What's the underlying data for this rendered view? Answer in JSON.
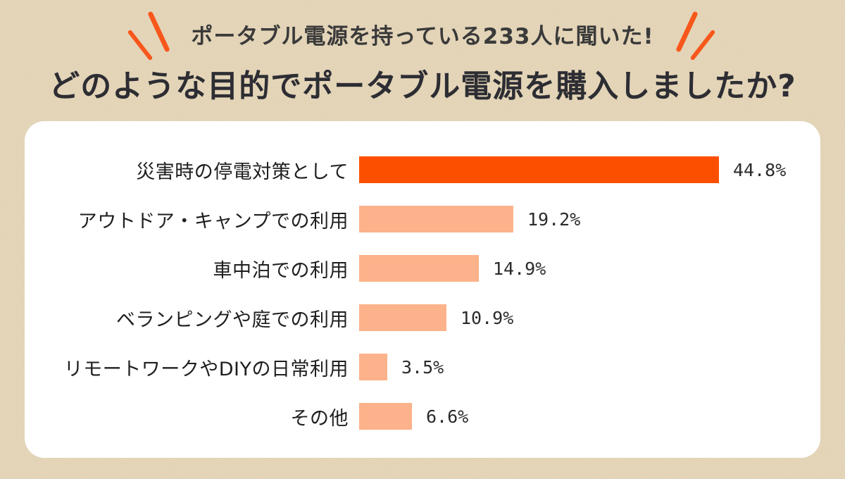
{
  "header": {
    "eyebrow": "ポータブル電源を持っている233人に聞いた!",
    "title": "どのような目的でポータブル電源を購入しましたか?"
  },
  "colors": {
    "background": "#e6d7ba",
    "panel": "#ffffff",
    "bar_highlight": "#fc5000",
    "bar_default": "#fcb28a",
    "accent_mark": "#f8571b",
    "title_text": "#2d2d33",
    "label_text": "#1f1f1f",
    "value_text": "#2b2b2b"
  },
  "chart_data": {
    "type": "bar",
    "orientation": "horizontal",
    "title": "どのような目的でポータブル電源を購入しましたか?",
    "subtitle": "ポータブル電源を持っている233人に聞いた!",
    "sample_size": 233,
    "unit": "%",
    "categories": [
      "災害時の停電対策として",
      "アウトドア・キャンプでの利用",
      "車中泊での利用",
      "ベランピングや庭での利用",
      "リモートワークやDIYの日常利用",
      "その他"
    ],
    "values": [
      44.8,
      19.2,
      14.9,
      10.9,
      3.5,
      6.6
    ],
    "value_labels": [
      "44.8%",
      "19.2%",
      "14.9%",
      "10.9%",
      "3.5%",
      "6.6%"
    ],
    "highlight_index": 0,
    "xlim": [
      0,
      50
    ],
    "grid": false,
    "legend": false
  }
}
